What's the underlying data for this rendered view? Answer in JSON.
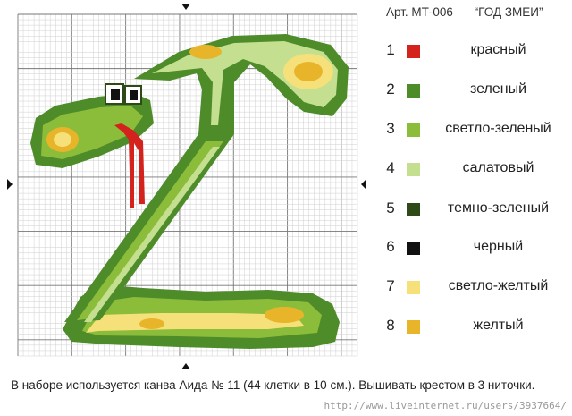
{
  "header": {
    "article": "Арт. МТ-006",
    "title": "“ГОД ЗМЕИ”"
  },
  "legend": [
    {
      "num": "1",
      "name": "красный",
      "color": "#d4231c"
    },
    {
      "num": "2",
      "name": "зеленый",
      "color": "#4e8c2a"
    },
    {
      "num": "3",
      "name": "светло-зеленый",
      "color": "#8cbd3a"
    },
    {
      "num": "4",
      "name": "салатовый",
      "color": "#c4df90"
    },
    {
      "num": "5",
      "name": "темно-зеленый",
      "color": "#2f4a18"
    },
    {
      "num": "6",
      "name": "черный",
      "color": "#111111"
    },
    {
      "num": "7",
      "name": "светло-желтый",
      "color": "#f5e07a"
    },
    {
      "num": "8",
      "name": "желтый",
      "color": "#e8b52a"
    }
  ],
  "pattern": {
    "subject": "snake shaped like the letter Z",
    "grid_columns": 63,
    "grid_rows": 63,
    "grid_block": 10
  },
  "footer": "В наборе используется канва Аида № 11 (44 клетки в 10 см.). Вышивать крестом в 3 ниточки.",
  "watermark": "http://www.liveinternet.ru/users/3937664/"
}
